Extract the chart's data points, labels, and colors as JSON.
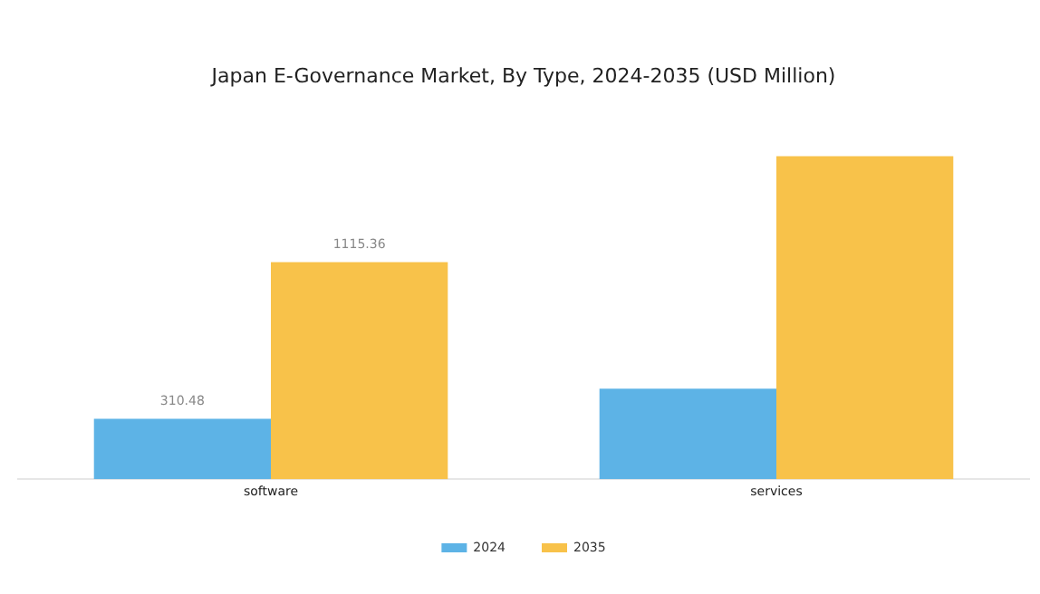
{
  "chart_data": {
    "type": "bar",
    "title": "Japan E-Governance Market, By Type, 2024-2035 (USD Million)",
    "categories": [
      "software",
      "services"
    ],
    "series": [
      {
        "name": "2024",
        "color": "#5db3e6",
        "values": [
          310.48,
          465
        ],
        "value_labels": [
          "310.48",
          null
        ]
      },
      {
        "name": "2035",
        "color": "#f8c24a",
        "values": [
          1115.36,
          1660
        ],
        "value_labels": [
          "1115.36",
          null
        ]
      }
    ],
    "tick_labels": "x",
    "grid": false,
    "legend": "bottom"
  }
}
